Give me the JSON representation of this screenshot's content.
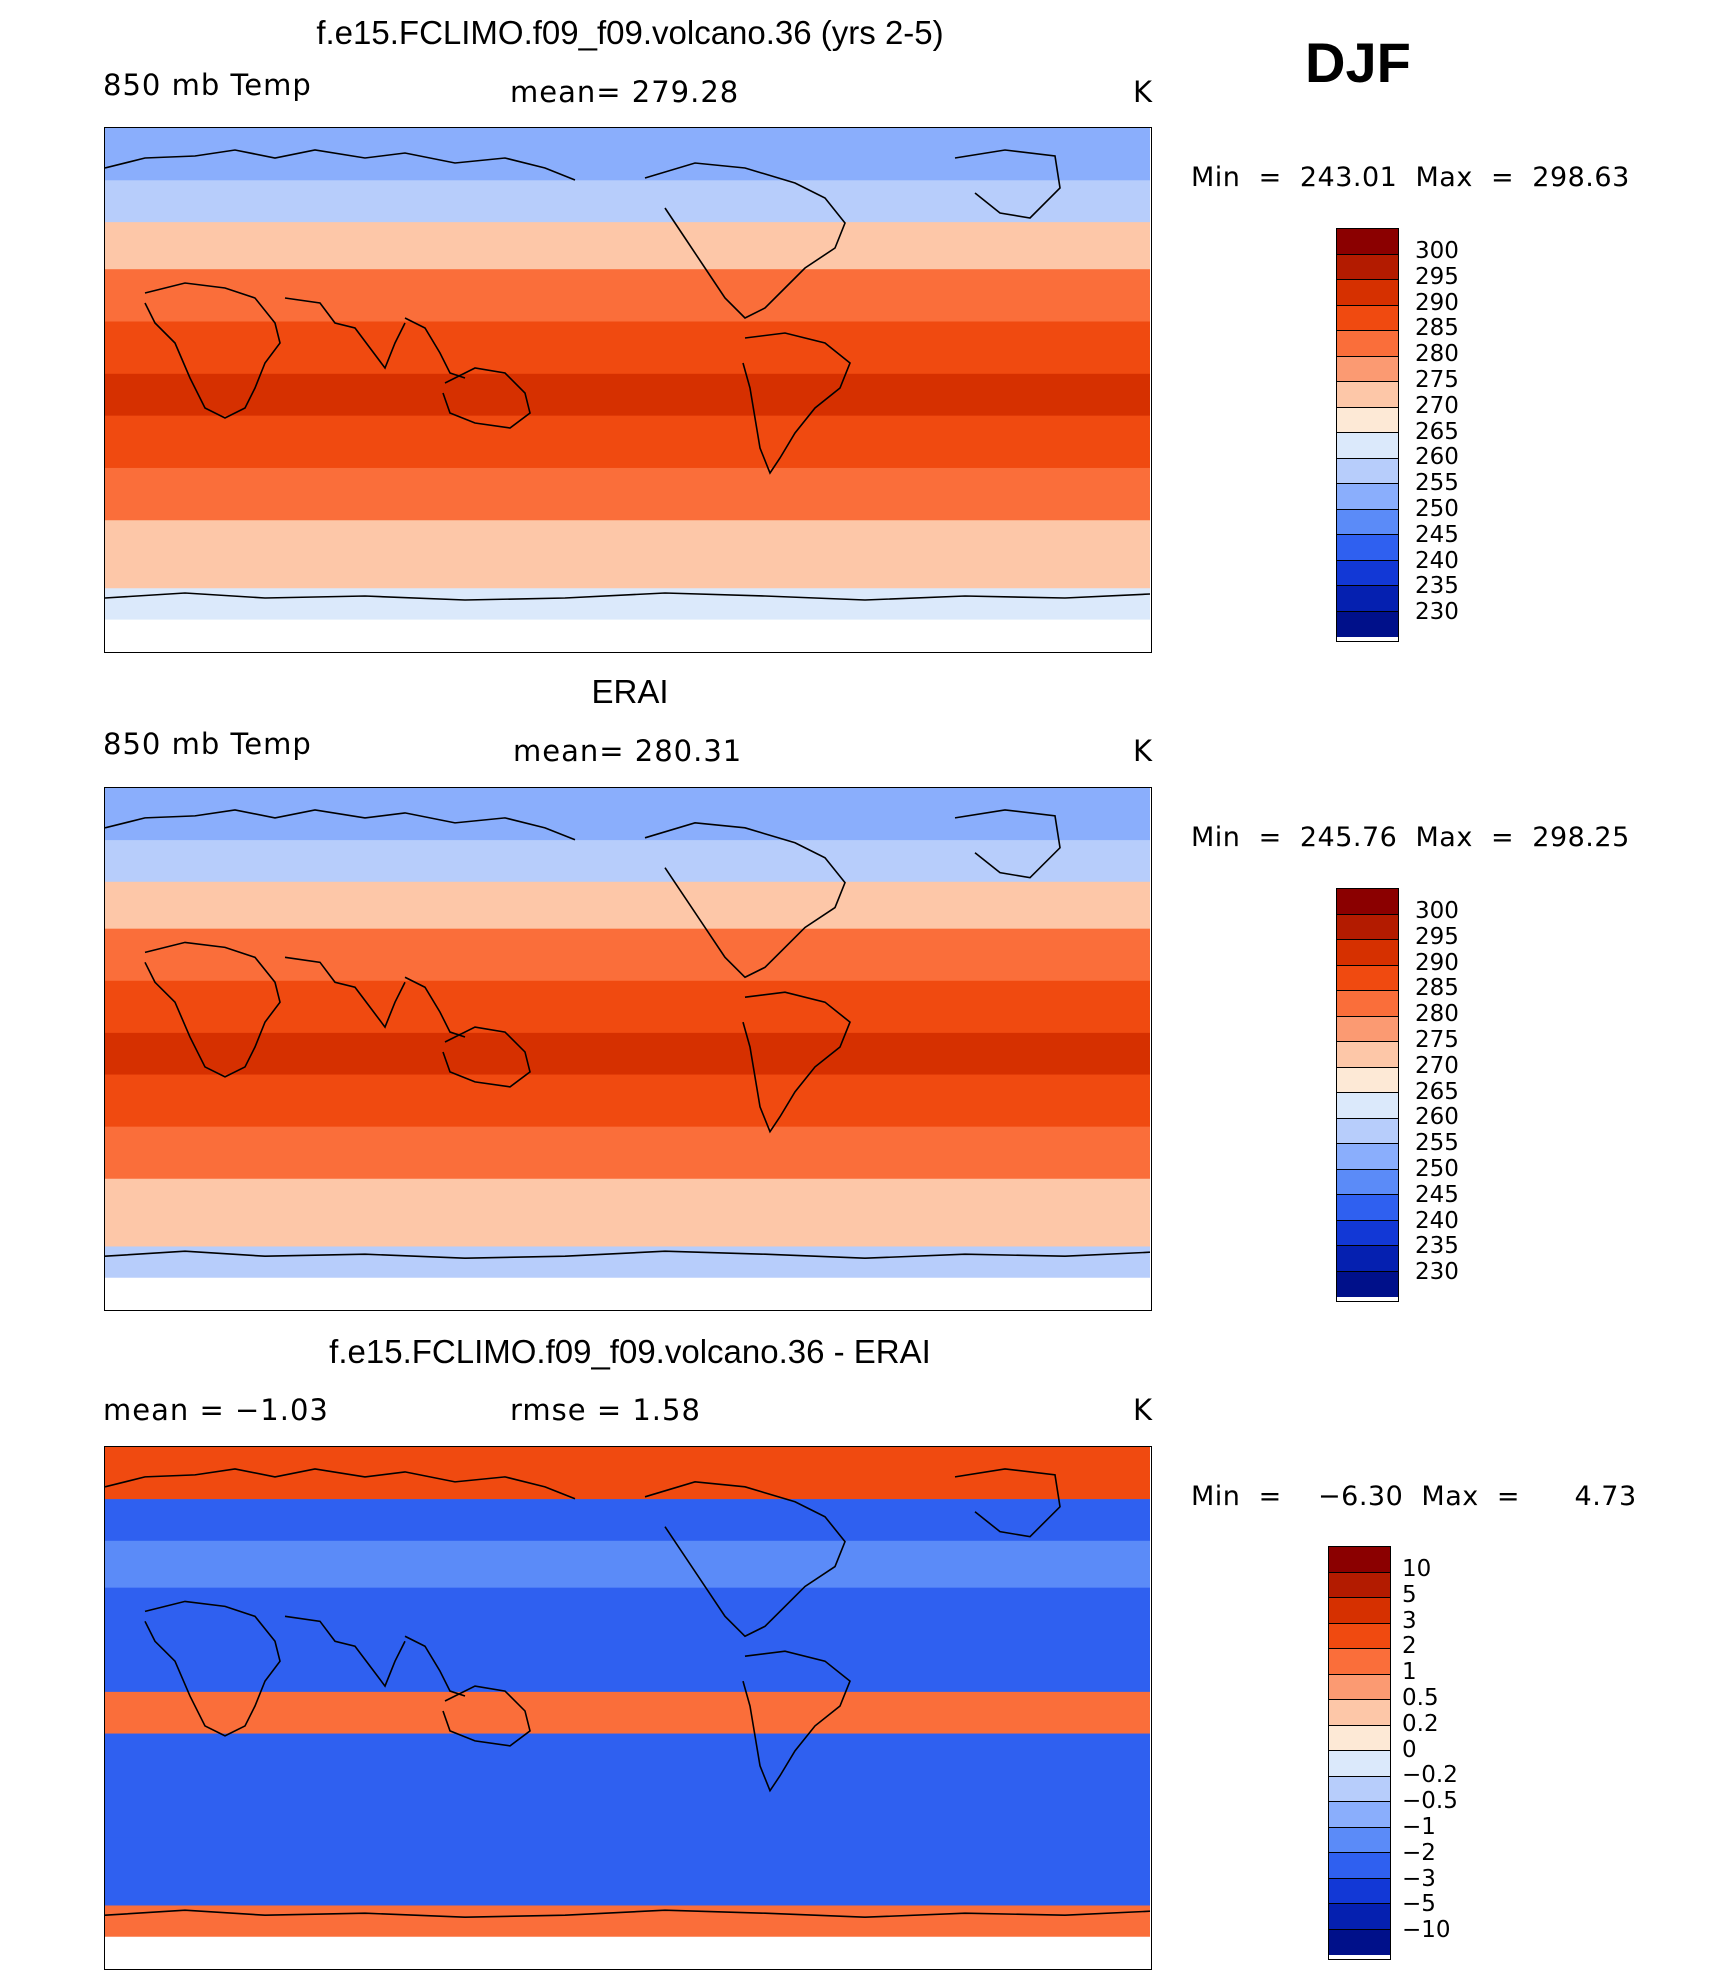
{
  "season": "DJF",
  "units": "K",
  "panels": [
    {
      "title": "f.e15.FCLIMO.f09_f09.volcano.36 (yrs 2-5)",
      "left_label": "850 mb Temp",
      "center_label": "mean= 279.28",
      "min_label": "Min  =  243.01  Max  =  298.63",
      "colorbar": {
        "levels": [
          "300",
          "295",
          "290",
          "285",
          "280",
          "275",
          "270",
          "265",
          "260",
          "255",
          "250",
          "245",
          "240",
          "235",
          "230"
        ],
        "colors": [
          "#8b0000",
          "#b31b00",
          "#d63000",
          "#f04a10",
          "#fa6e3a",
          "#fb9a72",
          "#fdc7a8",
          "#fde9d6",
          "#dbe9fb",
          "#b7cdfb",
          "#8aaefc",
          "#5b8bf8",
          "#2f60f0",
          "#1238d6",
          "#0520b0",
          "#00108a"
        ]
      },
      "map_fields": {
        "arctic": "#8aaefc",
        "subarctic": "#b7cdfb",
        "midlat": "#fdc7a8",
        "subtrop": "#fa6e3a",
        "tropic": "#f04a10",
        "hot": "#d63000",
        "south_mid": "#fdc7a8",
        "antarctic": "#dbe9fb",
        "missing": "#ffffff"
      }
    },
    {
      "title": "ERAI",
      "left_label": "850 mb Temp",
      "center_label": "mean= 280.31",
      "min_label": "Min  =  245.76  Max  =  298.25",
      "colorbar": {
        "levels": [
          "300",
          "295",
          "290",
          "285",
          "280",
          "275",
          "270",
          "265",
          "260",
          "255",
          "250",
          "245",
          "240",
          "235",
          "230"
        ],
        "colors": [
          "#8b0000",
          "#b31b00",
          "#d63000",
          "#f04a10",
          "#fa6e3a",
          "#fb9a72",
          "#fdc7a8",
          "#fde9d6",
          "#dbe9fb",
          "#b7cdfb",
          "#8aaefc",
          "#5b8bf8",
          "#2f60f0",
          "#1238d6",
          "#0520b0",
          "#00108a"
        ]
      },
      "map_fields": {
        "arctic": "#8aaefc",
        "subarctic": "#b7cdfb",
        "midlat": "#fdc7a8",
        "subtrop": "#fa6e3a",
        "tropic": "#f04a10",
        "hot": "#d63000",
        "south_mid": "#fdc7a8",
        "antarctic": "#b7cdfb",
        "missing": "#ffffff"
      }
    },
    {
      "title": "f.e15.FCLIMO.f09_f09.volcano.36 - ERAI",
      "left_label": "mean  =    −1.03",
      "center_label": "rmse  =     1.58",
      "min_label": "Min  =    −6.30  Max  =      4.73",
      "colorbar": {
        "levels": [
          "10",
          "5",
          "3",
          "2",
          "1",
          "0.5",
          "0.2",
          "0",
          "−0.2",
          "−0.5",
          "−1",
          "−2",
          "−3",
          "−5",
          "−10"
        ],
        "colors": [
          "#8b0000",
          "#b31b00",
          "#d63000",
          "#f04a10",
          "#fa6e3a",
          "#fb9a72",
          "#fdc7a8",
          "#fde9d6",
          "#dbe9fb",
          "#b7cdfb",
          "#8aaefc",
          "#5b8bf8",
          "#2f60f0",
          "#1238d6",
          "#0520b0",
          "#00108a"
        ]
      },
      "map_fields": {
        "arctic": "#f04a10",
        "subarctic": "#2f60f0",
        "midlat": "#5b8bf8",
        "subtrop": "#2f60f0",
        "tropic": "#2f60f0",
        "hot": "#fa6e3a",
        "south_mid": "#2f60f0",
        "antarctic": "#fa6e3a",
        "missing": "#ffffff"
      }
    }
  ]
}
